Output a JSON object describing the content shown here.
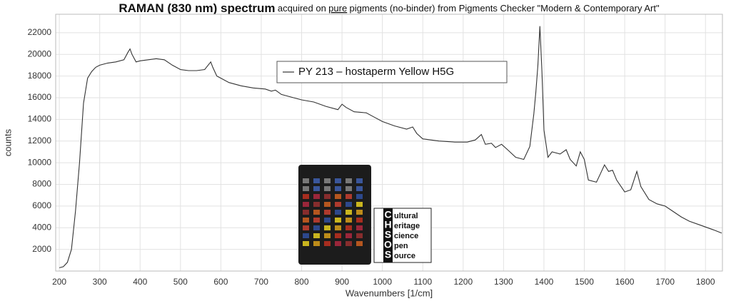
{
  "chart_data": {
    "type": "line",
    "title": [
      "RAMAN (830 nm) spectrum",
      "acquired on",
      "pure",
      "pigments (no-binder) from Pigments Checker \"Modern & Contemporary Art\""
    ],
    "x_label": "Wavenumbers [1/cm]",
    "y_label": "counts",
    "xlim": [
      191,
      1842
    ],
    "ylim": [
      0,
      23700
    ],
    "xticks": [
      200,
      300,
      400,
      500,
      600,
      700,
      800,
      900,
      1000,
      1100,
      1200,
      1300,
      1400,
      1500,
      1600,
      1700,
      1800
    ],
    "yticks": [
      2000,
      4000,
      6000,
      8000,
      10000,
      12000,
      14000,
      16000,
      18000,
      20000,
      22000
    ],
    "grid": true,
    "legend": "top",
    "series": [
      {
        "name": "PY 213 – hostaperm Yellow H5G",
        "color": "#333333",
        "x": [
          200,
          210,
          220,
          230,
          240,
          250,
          260,
          270,
          280,
          290,
          300,
          320,
          340,
          360,
          370,
          375,
          380,
          390,
          400,
          420,
          440,
          460,
          480,
          500,
          520,
          540,
          560,
          575,
          580,
          590,
          600,
          620,
          650,
          680,
          710,
          725,
          735,
          750,
          780,
          800,
          830,
          860,
          890,
          900,
          910,
          930,
          960,
          980,
          1000,
          1030,
          1060,
          1075,
          1085,
          1100,
          1140,
          1180,
          1210,
          1230,
          1245,
          1255,
          1270,
          1280,
          1295,
          1310,
          1330,
          1350,
          1365,
          1375,
          1380,
          1385,
          1390,
          1395,
          1400,
          1410,
          1420,
          1440,
          1455,
          1465,
          1480,
          1490,
          1500,
          1510,
          1530,
          1540,
          1550,
          1560,
          1570,
          1580,
          1600,
          1615,
          1630,
          1640,
          1660,
          1680,
          1700,
          1720,
          1740,
          1760,
          1790,
          1820,
          1840
        ],
        "values": [
          300,
          400,
          800,
          2000,
          5500,
          10000,
          15500,
          17800,
          18400,
          18800,
          19000,
          19200,
          19300,
          19500,
          20200,
          20500,
          20000,
          19300,
          19400,
          19500,
          19600,
          19500,
          19000,
          18600,
          18500,
          18500,
          18600,
          19300,
          18800,
          18000,
          17800,
          17400,
          17100,
          16900,
          16800,
          16600,
          16700,
          16300,
          16000,
          15800,
          15600,
          15200,
          14900,
          15400,
          15100,
          14700,
          14600,
          14200,
          13800,
          13400,
          13100,
          13300,
          12700,
          12200,
          12000,
          11900,
          11900,
          12100,
          12600,
          11700,
          11800,
          11400,
          11700,
          11200,
          10500,
          10300,
          11500,
          14500,
          16500,
          19000,
          22600,
          18500,
          13000,
          10500,
          11000,
          10800,
          11200,
          10300,
          9700,
          11000,
          10300,
          8400,
          8200,
          9000,
          9800,
          9200,
          9300,
          8400,
          7300,
          7500,
          9200,
          7800,
          6600,
          6200,
          6000,
          5500,
          5000,
          4600,
          4200,
          3800,
          3500
        ]
      }
    ]
  },
  "inset": {
    "logo_letters": [
      "C",
      "H",
      "S",
      "O",
      "S"
    ],
    "logo_words": [
      "ultural",
      "eritage",
      "cience",
      "pen",
      "ource"
    ]
  }
}
